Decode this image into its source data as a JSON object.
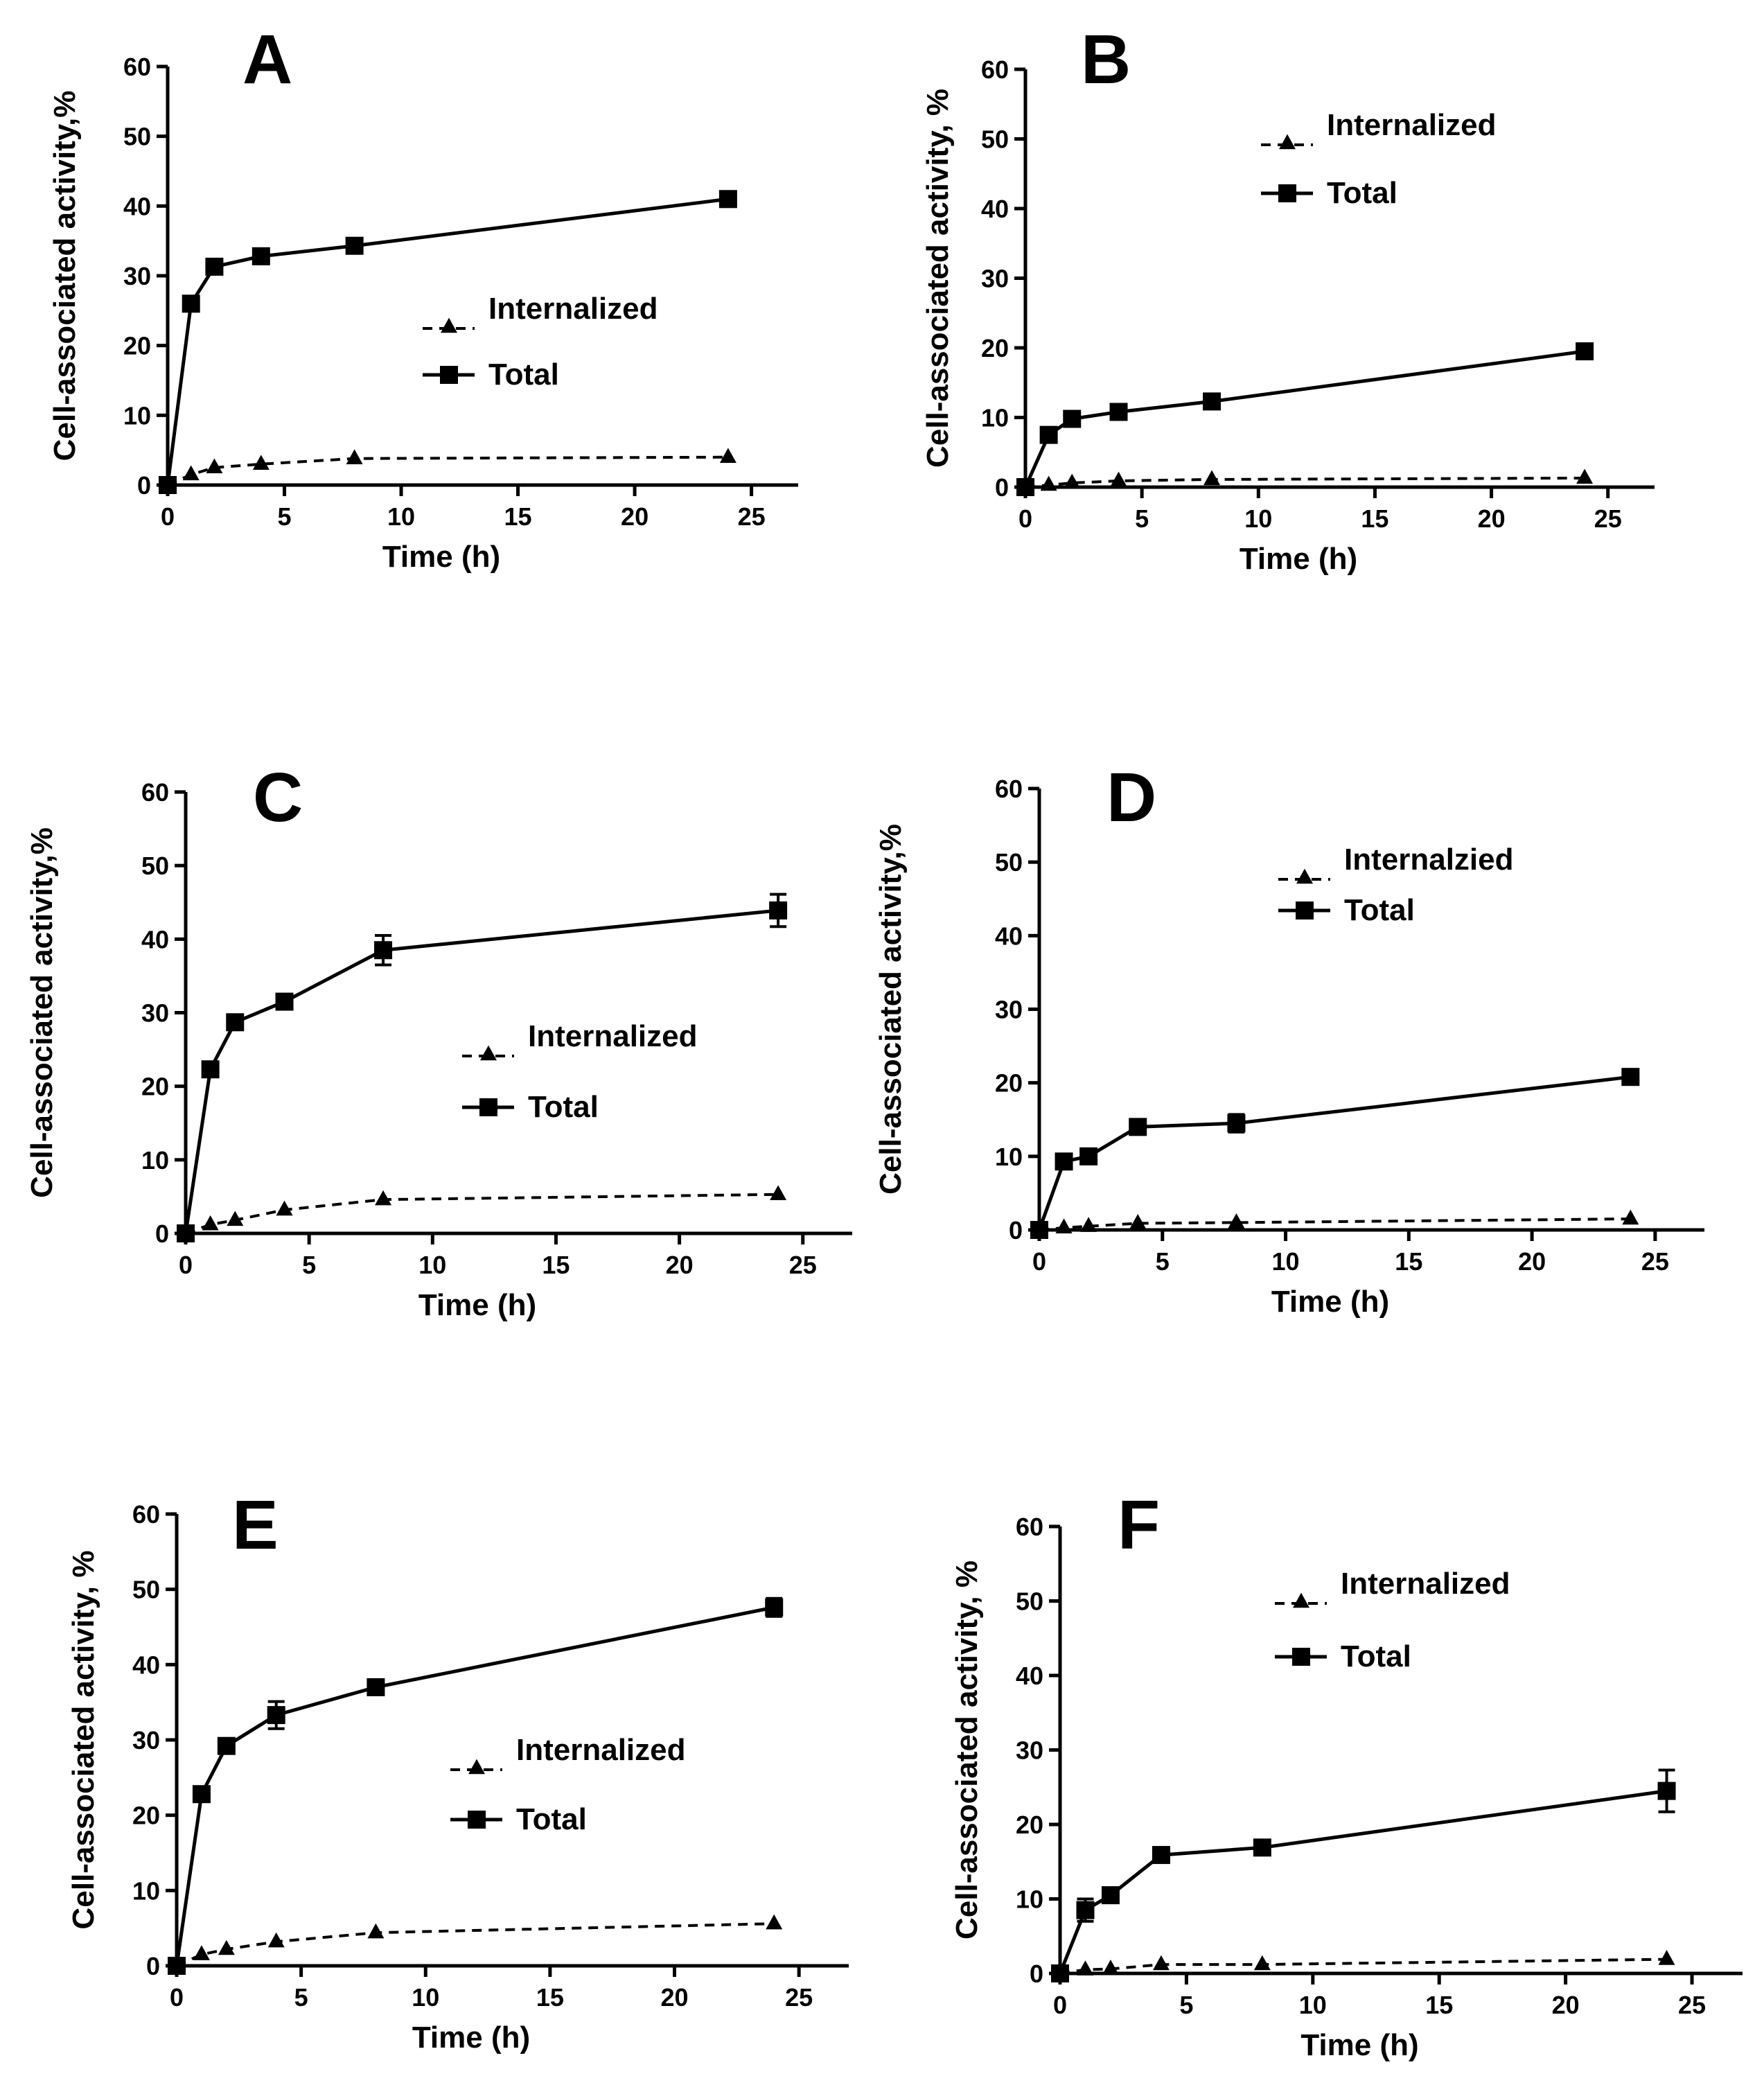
{
  "chart_data": [
    {
      "type": "line",
      "panel_label": "A",
      "xlabel": "Time (h)",
      "ylabel": "Cell-associated activity,%",
      "xlim": [
        0,
        27
      ],
      "ylim": [
        0,
        60
      ],
      "xticks": [
        0,
        5,
        10,
        15,
        20,
        25
      ],
      "yticks": [
        0,
        10,
        20,
        30,
        40,
        50,
        60
      ],
      "grid": false,
      "legend_placement": "center-right",
      "x": [
        0,
        1,
        2,
        4,
        8,
        24
      ],
      "series": [
        {
          "name": "Internalized",
          "marker": "triangle",
          "style": "dashed",
          "values": [
            0,
            1.5,
            2.5,
            3.0,
            3.8,
            4.0
          ],
          "errors": [
            0,
            0,
            0,
            0,
            0,
            0
          ]
        },
        {
          "name": "Total",
          "marker": "square",
          "style": "solid",
          "values": [
            0,
            26.0,
            31.3,
            32.8,
            34.3,
            41.0
          ],
          "errors": [
            0,
            0,
            0,
            0,
            0,
            0
          ]
        }
      ]
    },
    {
      "type": "line",
      "panel_label": "B",
      "xlabel": "Time (h)",
      "ylabel": "Cell-associated activity, %",
      "xlim": [
        0,
        27
      ],
      "ylim": [
        0,
        60
      ],
      "xticks": [
        0,
        5,
        10,
        15,
        20,
        25
      ],
      "yticks": [
        0,
        10,
        20,
        30,
        40,
        50,
        60
      ],
      "grid": false,
      "legend_placement": "top-right",
      "x": [
        0,
        1,
        2,
        4,
        8,
        24
      ],
      "series": [
        {
          "name": "Internalized",
          "marker": "triangle",
          "style": "dashed",
          "values": [
            0,
            0.3,
            0.6,
            0.9,
            1.1,
            1.3
          ],
          "errors": [
            0,
            0,
            0,
            0,
            0,
            0
          ]
        },
        {
          "name": "Total",
          "marker": "square",
          "style": "solid",
          "values": [
            0,
            7.5,
            9.8,
            10.8,
            12.3,
            19.5
          ],
          "errors": [
            0,
            0,
            0,
            0,
            0,
            0
          ]
        }
      ]
    },
    {
      "type": "line",
      "panel_label": "C",
      "xlabel": "Time (h)",
      "ylabel": "Cell-associated activity,%",
      "xlim": [
        0,
        27
      ],
      "ylim": [
        0,
        60
      ],
      "xticks": [
        0,
        5,
        10,
        15,
        20,
        25
      ],
      "yticks": [
        0,
        10,
        20,
        30,
        40,
        50,
        60
      ],
      "grid": false,
      "legend_placement": "center-right",
      "x": [
        0,
        1,
        2,
        4,
        8,
        24
      ],
      "series": [
        {
          "name": "Internalized",
          "marker": "triangle",
          "style": "dashed",
          "values": [
            0,
            1.2,
            1.8,
            3.2,
            4.6,
            5.3
          ],
          "errors": [
            0,
            0,
            0,
            0,
            0,
            0
          ]
        },
        {
          "name": "Total",
          "marker": "square",
          "style": "solid",
          "values": [
            0,
            22.3,
            28.7,
            31.5,
            38.5,
            43.9
          ],
          "errors": [
            0,
            1.0,
            0.8,
            0.8,
            2.0,
            2.2
          ]
        }
      ]
    },
    {
      "type": "line",
      "panel_label": "D",
      "xlabel": "Time (h)",
      "ylabel": "Cell-associated activity,%",
      "xlim": [
        0,
        27
      ],
      "ylim": [
        0,
        60
      ],
      "xticks": [
        0,
        5,
        10,
        15,
        20,
        25
      ],
      "yticks": [
        0,
        10,
        20,
        30,
        40,
        50,
        60
      ],
      "grid": false,
      "legend_placement": "top-right",
      "x": [
        0,
        1,
        2,
        4,
        8,
        24
      ],
      "series": [
        {
          "name": "Internalzied",
          "marker": "triangle",
          "style": "dashed",
          "values": [
            0,
            0.3,
            0.5,
            0.9,
            1.0,
            1.5
          ],
          "errors": [
            0,
            0,
            0,
            0,
            0,
            0
          ]
        },
        {
          "name": "Total",
          "marker": "square",
          "style": "solid",
          "values": [
            0,
            9.3,
            10.0,
            14.0,
            14.5,
            20.8
          ],
          "errors": [
            0,
            0.8,
            0.5,
            0.8,
            1.2,
            0.8
          ]
        }
      ]
    },
    {
      "type": "line",
      "panel_label": "E",
      "xlabel": "Time (h)",
      "ylabel": "Cell-associated activity, %",
      "xlim": [
        0,
        27
      ],
      "ylim": [
        0,
        60
      ],
      "xticks": [
        0,
        5,
        10,
        15,
        20,
        25
      ],
      "yticks": [
        0,
        10,
        20,
        30,
        40,
        50,
        60
      ],
      "grid": false,
      "legend_placement": "center-right",
      "x": [
        0,
        1,
        2,
        4,
        8,
        24
      ],
      "series": [
        {
          "name": "Internalized",
          "marker": "triangle",
          "style": "dashed",
          "values": [
            0,
            1.5,
            2.2,
            3.2,
            4.4,
            5.6
          ],
          "errors": [
            0,
            0,
            0,
            0,
            0,
            0
          ]
        },
        {
          "name": "Total",
          "marker": "square",
          "style": "solid",
          "values": [
            0,
            22.8,
            29.2,
            33.3,
            37.0,
            47.6
          ],
          "errors": [
            0,
            0.8,
            0.8,
            1.8,
            0.8,
            1.2
          ]
        }
      ]
    },
    {
      "type": "line",
      "panel_label": "F",
      "xlabel": "Time (h)",
      "ylabel": "Cell-associated activity, %",
      "xlim": [
        0,
        27
      ],
      "ylim": [
        0,
        60
      ],
      "xticks": [
        0,
        5,
        10,
        15,
        20,
        25
      ],
      "yticks": [
        0,
        10,
        20,
        30,
        40,
        50,
        60
      ],
      "grid": false,
      "legend_placement": "top-right",
      "x": [
        0,
        1,
        2,
        4,
        8,
        24
      ],
      "series": [
        {
          "name": "Internalized",
          "marker": "triangle",
          "style": "dashed",
          "values": [
            0,
            0.5,
            0.6,
            1.2,
            1.2,
            1.9
          ],
          "errors": [
            0,
            0,
            0,
            0,
            0,
            0
          ]
        },
        {
          "name": "Total",
          "marker": "square",
          "style": "solid",
          "values": [
            0,
            8.5,
            10.5,
            15.9,
            16.9,
            24.5
          ],
          "errors": [
            0,
            1.5,
            0.5,
            0.6,
            0.6,
            2.8
          ]
        }
      ]
    }
  ]
}
